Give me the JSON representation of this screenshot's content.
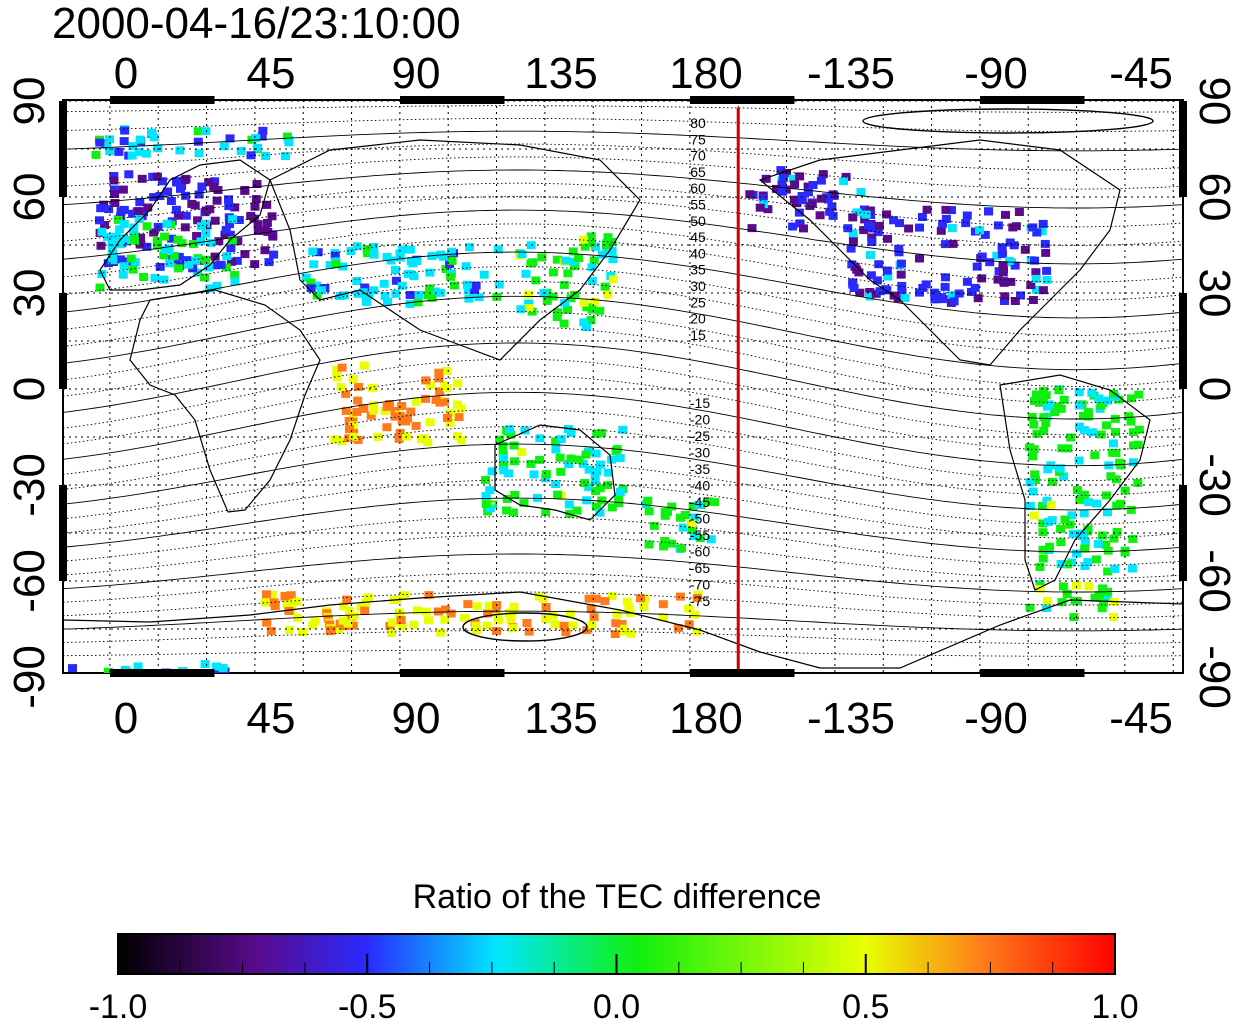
{
  "title": "2000-04-16/23:10:00",
  "lon_ticks": [
    "0",
    "45",
    "90",
    "135",
    "180",
    "-135",
    "-90",
    "-45"
  ],
  "lat_ticks": [
    "90",
    "60",
    "30",
    "0",
    "-30",
    "-60",
    "-90"
  ],
  "contour_labels_north": [
    "80",
    "75",
    "70",
    "65",
    "60",
    "55",
    "50",
    "45",
    "40",
    "35",
    "30",
    "25",
    "20",
    "15"
  ],
  "contour_labels_south": [
    "-15",
    "-20",
    "-25",
    "-30",
    "-35",
    "-40",
    "-45",
    "-50",
    "-55",
    "-60",
    "-65",
    "-70",
    "-75"
  ],
  "terminator_longitude": 190,
  "colorbar": {
    "title": "Ratio of the TEC difference",
    "tick_labels": [
      "-1.0",
      "-0.5",
      "0.0",
      "0.5",
      "1.0"
    ],
    "min": -1.0,
    "max": 1.0,
    "colors": [
      "#000000",
      "#5a0a8c",
      "#2a2aff",
      "#00e6ff",
      "#10f010",
      "#e8ff00",
      "#ff7a1a",
      "#ff0000"
    ]
  },
  "colors": {
    "terminator": "#cc0000",
    "frame": "#000000"
  }
}
